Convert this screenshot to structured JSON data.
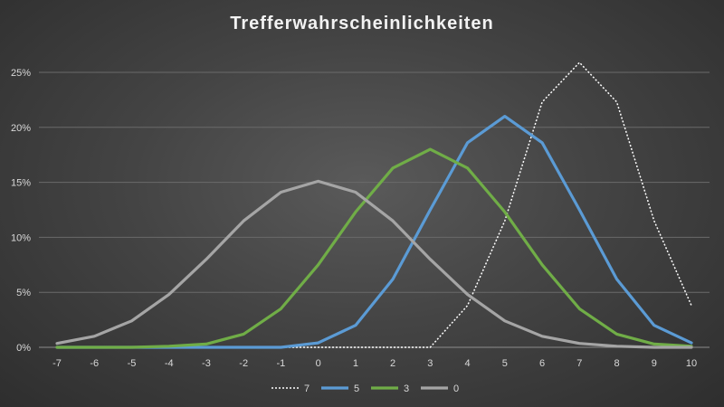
{
  "chart_data": {
    "type": "line",
    "title": "Trefferwahrscheinlichkeiten",
    "xlabel": "",
    "ylabel": "",
    "x": [
      -7,
      -6,
      -5,
      -4,
      -3,
      -2,
      -1,
      0,
      1,
      2,
      3,
      4,
      5,
      6,
      7,
      8,
      9,
      10
    ],
    "x_tick_labels": [
      "-7",
      "-6",
      "-5",
      "-4",
      "-3",
      "-2",
      "-1",
      "0",
      "1",
      "2",
      "3",
      "4",
      "5",
      "6",
      "7",
      "8",
      "9",
      "10"
    ],
    "ylim": [
      0,
      25
    ],
    "y_ticks": [
      0,
      5,
      10,
      15,
      20,
      25
    ],
    "y_tick_labels": [
      "0%",
      "5%",
      "10%",
      "15%",
      "20%",
      "25%"
    ],
    "grid": true,
    "legend_position": "bottom",
    "series": [
      {
        "name": "7",
        "color": "#ffffff",
        "style": "dotted",
        "values": [
          0,
          0,
          0,
          0,
          0,
          0,
          0,
          0,
          0,
          0,
          0,
          3.8,
          11.5,
          22.3,
          25.9,
          22.3,
          11.5,
          3.8
        ]
      },
      {
        "name": "5",
        "color": "#5b9bd5",
        "style": "solid",
        "values": [
          0,
          0,
          0,
          0,
          0,
          0,
          0,
          0.4,
          2.0,
          6.2,
          12.5,
          18.6,
          21.0,
          18.6,
          12.5,
          6.2,
          2.0,
          0.4
        ]
      },
      {
        "name": "3",
        "color": "#70ad47",
        "style": "solid",
        "values": [
          0,
          0,
          0,
          0.1,
          0.3,
          1.2,
          3.5,
          7.5,
          12.3,
          16.3,
          18.0,
          16.3,
          12.3,
          7.5,
          3.5,
          1.2,
          0.3,
          0.1
        ]
      },
      {
        "name": "0",
        "color": "#a5a5a5",
        "style": "solid",
        "values": [
          0.35,
          1.0,
          2.4,
          4.8,
          8.0,
          11.5,
          14.1,
          15.1,
          14.1,
          11.5,
          8.0,
          4.8,
          2.4,
          1.0,
          0.35,
          0.1,
          0,
          0
        ]
      }
    ]
  }
}
